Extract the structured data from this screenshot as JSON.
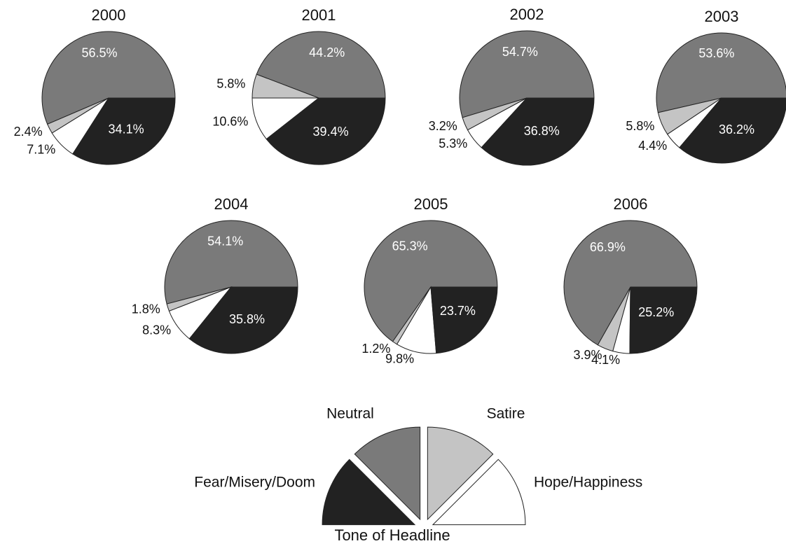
{
  "chart_data": [
    {
      "type": "pie",
      "title": "2000",
      "values": [
        56.5,
        2.4,
        7.1,
        34.1
      ],
      "value_labels": [
        "56.5%",
        "2.4%",
        "7.1%",
        "34.1%"
      ]
    },
    {
      "type": "pie",
      "title": "2001",
      "values": [
        44.2,
        5.8,
        10.6,
        39.4
      ],
      "value_labels": [
        "44.2%",
        "5.8%",
        "10.6%",
        "39.4%"
      ]
    },
    {
      "type": "pie",
      "title": "2002",
      "values": [
        54.7,
        3.2,
        5.3,
        36.8
      ],
      "value_labels": [
        "54.7%",
        "3.2%",
        "5.3%",
        "36.8%"
      ]
    },
    {
      "type": "pie",
      "title": "2003",
      "values": [
        53.6,
        5.8,
        4.4,
        36.2
      ],
      "value_labels": [
        "53.6%",
        "5.8%",
        "4.4%",
        "36.2%"
      ]
    },
    {
      "type": "pie",
      "title": "2004",
      "values": [
        54.1,
        1.8,
        8.3,
        35.8
      ],
      "value_labels": [
        "54.1%",
        "1.8%",
        "8.3%",
        "35.8%"
      ]
    },
    {
      "type": "pie",
      "title": "2005",
      "values": [
        65.3,
        1.2,
        9.8,
        23.7
      ],
      "value_labels": [
        "65.3%",
        "1.2%",
        "9.8%",
        "23.7%"
      ]
    },
    {
      "type": "pie",
      "title": "2006",
      "values": [
        66.9,
        3.9,
        4.1,
        25.2
      ],
      "value_labels": [
        "66.9%",
        "3.9%",
        "4.1%",
        "25.2%"
      ]
    }
  ],
  "legend": {
    "title": "Tone of Headline",
    "categories": [
      "Neutral",
      "Satire",
      "Hope/Happiness",
      "Fear/Misery/Doom"
    ],
    "colors": [
      "#7a7a7a",
      "#c4c4c4",
      "#ffffff",
      "#222222"
    ]
  }
}
